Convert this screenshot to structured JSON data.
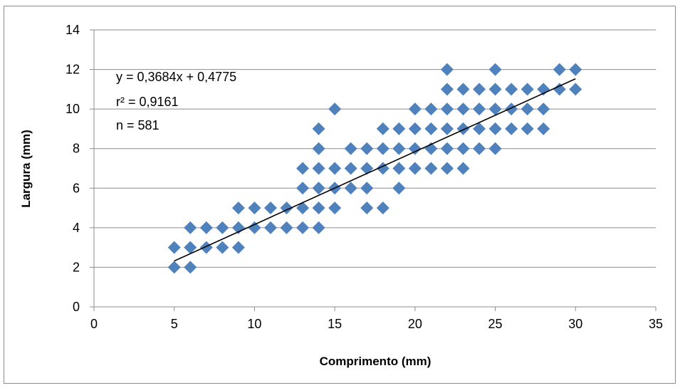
{
  "chart_data": {
    "type": "scatter",
    "title": "",
    "xlabel": "Comprimento (mm)",
    "ylabel": "Largura (mm)",
    "xlim": [
      0,
      35
    ],
    "ylim": [
      0,
      14
    ],
    "xticks": [
      0,
      5,
      10,
      15,
      20,
      25,
      30,
      35
    ],
    "yticks": [
      0,
      2,
      4,
      6,
      8,
      10,
      12,
      14
    ],
    "grid": "horizontal",
    "marker_color": "#4f81bd",
    "trendline": {
      "slope": 0.3684,
      "intercept": 0.4775,
      "x_start": 5,
      "x_end": 30,
      "color": "#000000"
    },
    "annotations": [
      "y = 0,3684x + 0,4775",
      "r² = 0,9161",
      "n = 581"
    ],
    "points": [
      [
        5,
        2
      ],
      [
        5,
        3
      ],
      [
        6,
        2
      ],
      [
        6,
        3
      ],
      [
        6,
        4
      ],
      [
        7,
        3
      ],
      [
        7,
        4
      ],
      [
        8,
        3
      ],
      [
        8,
        4
      ],
      [
        9,
        3
      ],
      [
        9,
        4
      ],
      [
        9,
        5
      ],
      [
        10,
        4
      ],
      [
        10,
        5
      ],
      [
        11,
        4
      ],
      [
        11,
        5
      ],
      [
        12,
        4
      ],
      [
        12,
        5
      ],
      [
        13,
        4
      ],
      [
        13,
        5
      ],
      [
        13,
        6
      ],
      [
        13,
        7
      ],
      [
        14,
        4
      ],
      [
        14,
        5
      ],
      [
        14,
        6
      ],
      [
        14,
        7
      ],
      [
        14,
        8
      ],
      [
        14,
        9
      ],
      [
        15,
        5
      ],
      [
        15,
        6
      ],
      [
        15,
        7
      ],
      [
        15,
        10
      ],
      [
        16,
        6
      ],
      [
        16,
        7
      ],
      [
        16,
        8
      ],
      [
        17,
        5
      ],
      [
        17,
        6
      ],
      [
        17,
        7
      ],
      [
        17,
        8
      ],
      [
        18,
        5
      ],
      [
        18,
        7
      ],
      [
        18,
        8
      ],
      [
        18,
        9
      ],
      [
        19,
        6
      ],
      [
        19,
        7
      ],
      [
        19,
        8
      ],
      [
        19,
        9
      ],
      [
        20,
        7
      ],
      [
        20,
        8
      ],
      [
        20,
        9
      ],
      [
        20,
        10
      ],
      [
        21,
        7
      ],
      [
        21,
        8
      ],
      [
        21,
        9
      ],
      [
        21,
        10
      ],
      [
        22,
        7
      ],
      [
        22,
        8
      ],
      [
        22,
        9
      ],
      [
        22,
        10
      ],
      [
        22,
        11
      ],
      [
        22,
        12
      ],
      [
        23,
        7
      ],
      [
        23,
        8
      ],
      [
        23,
        9
      ],
      [
        23,
        10
      ],
      [
        23,
        11
      ],
      [
        24,
        8
      ],
      [
        24,
        9
      ],
      [
        24,
        10
      ],
      [
        24,
        11
      ],
      [
        25,
        8
      ],
      [
        25,
        9
      ],
      [
        25,
        10
      ],
      [
        25,
        11
      ],
      [
        25,
        12
      ],
      [
        26,
        9
      ],
      [
        26,
        10
      ],
      [
        26,
        11
      ],
      [
        27,
        9
      ],
      [
        27,
        10
      ],
      [
        27,
        11
      ],
      [
        28,
        9
      ],
      [
        28,
        10
      ],
      [
        28,
        11
      ],
      [
        29,
        11
      ],
      [
        29,
        12
      ],
      [
        30,
        11
      ],
      [
        30,
        12
      ]
    ]
  }
}
